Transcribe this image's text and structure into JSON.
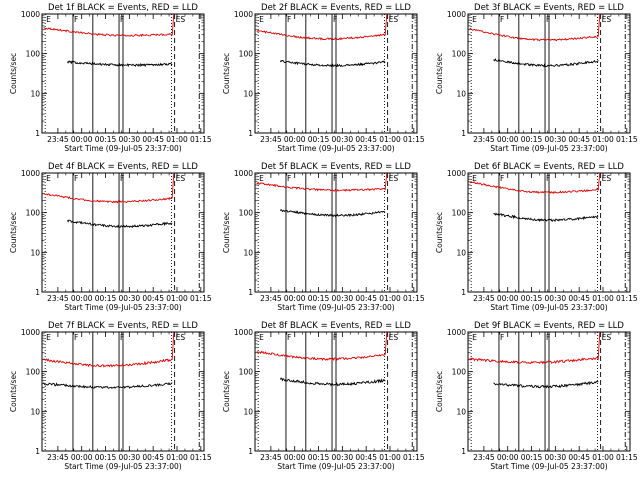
{
  "figure": {
    "background": "#ffffff",
    "events_color": "#000000",
    "lld_color": "#e00000"
  },
  "chart_data": [
    {
      "type": "line",
      "title": "Det 1f BLACK = Events, RED = LLD",
      "xlabel": "Start Time (09-Jul-05 23:37:00)",
      "ylabel": "Counts/sec",
      "yscale": "log",
      "ylim": [
        1,
        1000
      ],
      "xlim": [
        -2,
        100
      ],
      "x_unit": "minutes after 23:37:00",
      "x_tick_labels": [
        "23:45",
        "00:00",
        "00:15",
        "00:30",
        "00:45",
        "01:00",
        "01:15"
      ],
      "x_ticks": [
        8,
        23,
        38,
        53,
        68,
        83,
        98
      ],
      "y_tick_labels": [
        "1",
        "10",
        "100",
        "1000"
      ],
      "y_ticks": [
        1,
        10,
        100,
        1000
      ],
      "markers": [
        {
          "x": 0,
          "label": "E",
          "style": "dotted"
        },
        {
          "x": 17.5,
          "label": "F",
          "style": "solid"
        },
        {
          "x": 30,
          "label": "",
          "style": "solid"
        },
        {
          "x": 46.5,
          "label": "F",
          "style": "solid"
        },
        {
          "x": 49,
          "label": "",
          "style": "solid"
        },
        {
          "x": 79.5,
          "label": "",
          "style": "dotted"
        },
        {
          "x": 81.5,
          "label": "ES",
          "style": "dashed"
        },
        {
          "x": 97,
          "label": "",
          "style": "dashdot"
        }
      ],
      "series": [
        {
          "name": "LLD",
          "color": "#e00000",
          "x_start": -1,
          "x_end": 80,
          "start": 450,
          "end": 310,
          "dip": 300,
          "noise": 0.05,
          "spike_end": 1000
        },
        {
          "name": "Events",
          "color": "#000000",
          "x_start": 14,
          "x_end": 80,
          "start": 62,
          "end": 55,
          "dip": 52,
          "noise": 0.06
        }
      ]
    },
    {
      "type": "line",
      "title": "Det 2f BLACK = Events, RED = LLD",
      "xlabel": "Start Time (09-Jul-05 23:37:00)",
      "ylabel": "Counts/sec",
      "yscale": "log",
      "ylim": [
        1,
        1000
      ],
      "xlim": [
        -2,
        100
      ],
      "x_unit": "minutes after 23:37:00",
      "x_tick_labels": [
        "23:45",
        "00:00",
        "00:15",
        "00:30",
        "00:45",
        "01:00",
        "01:15"
      ],
      "x_ticks": [
        8,
        23,
        38,
        53,
        68,
        83,
        98
      ],
      "y_tick_labels": [
        "1",
        "10",
        "100",
        "1000"
      ],
      "y_ticks": [
        1,
        10,
        100,
        1000
      ],
      "markers": [
        {
          "x": 0,
          "label": "E",
          "style": "dotted"
        },
        {
          "x": 17.5,
          "label": "F",
          "style": "solid"
        },
        {
          "x": 30,
          "label": "",
          "style": "solid"
        },
        {
          "x": 46.5,
          "label": "F",
          "style": "solid"
        },
        {
          "x": 49,
          "label": "",
          "style": "solid"
        },
        {
          "x": 79.5,
          "label": "",
          "style": "dotted"
        },
        {
          "x": 81.5,
          "label": "ES",
          "style": "dashed"
        },
        {
          "x": 97,
          "label": "",
          "style": "dashdot"
        }
      ],
      "series": [
        {
          "name": "LLD",
          "color": "#e00000",
          "x_start": -1,
          "x_end": 80,
          "start": 380,
          "end": 300,
          "dip": 240,
          "noise": 0.05,
          "spike_end": 1000
        },
        {
          "name": "Events",
          "color": "#000000",
          "x_start": 14,
          "x_end": 80,
          "start": 65,
          "end": 62,
          "dip": 50,
          "noise": 0.06
        }
      ]
    },
    {
      "type": "line",
      "title": "Det 3f BLACK = Events, RED = LLD",
      "xlabel": "Start Time (09-Jul-05 23:37:00)",
      "ylabel": "Counts/sec",
      "yscale": "log",
      "ylim": [
        1,
        1000
      ],
      "xlim": [
        -2,
        100
      ],
      "x_unit": "minutes after 23:37:00",
      "x_tick_labels": [
        "23:45",
        "00:00",
        "00:15",
        "00:30",
        "00:45",
        "01:00",
        "01:15"
      ],
      "x_ticks": [
        8,
        23,
        38,
        53,
        68,
        83,
        98
      ],
      "y_tick_labels": [
        "1",
        "10",
        "100",
        "1000"
      ],
      "y_ticks": [
        1,
        10,
        100,
        1000
      ],
      "markers": [
        {
          "x": 0,
          "label": "E",
          "style": "dotted"
        },
        {
          "x": 17.5,
          "label": "F",
          "style": "solid"
        },
        {
          "x": 30,
          "label": "",
          "style": "solid"
        },
        {
          "x": 46.5,
          "label": "F",
          "style": "solid"
        },
        {
          "x": 49,
          "label": "",
          "style": "solid"
        },
        {
          "x": 79.5,
          "label": "",
          "style": "dotted"
        },
        {
          "x": 81.5,
          "label": "ES",
          "style": "dashed"
        },
        {
          "x": 97,
          "label": "",
          "style": "dashdot"
        }
      ],
      "series": [
        {
          "name": "LLD",
          "color": "#e00000",
          "x_start": -1,
          "x_end": 80,
          "start": 420,
          "end": 270,
          "dip": 230,
          "noise": 0.05,
          "spike_end": 1000
        },
        {
          "name": "Events",
          "color": "#000000",
          "x_start": 14,
          "x_end": 80,
          "start": 70,
          "end": 65,
          "dip": 50,
          "noise": 0.06
        }
      ]
    },
    {
      "type": "line",
      "title": "Det 4f BLACK = Events, RED = LLD",
      "xlabel": "Start Time (09-Jul-05 23:37:00)",
      "ylabel": "Counts/sec",
      "yscale": "log",
      "ylim": [
        1,
        1000
      ],
      "xlim": [
        -2,
        100
      ],
      "x_unit": "minutes after 23:37:00",
      "x_tick_labels": [
        "23:45",
        "00:00",
        "00:15",
        "00:30",
        "00:45",
        "01:00",
        "01:15"
      ],
      "x_ticks": [
        8,
        23,
        38,
        53,
        68,
        83,
        98
      ],
      "y_tick_labels": [
        "1",
        "10",
        "100",
        "1000"
      ],
      "y_ticks": [
        1,
        10,
        100,
        1000
      ],
      "markers": [
        {
          "x": 0,
          "label": "E",
          "style": "dotted"
        },
        {
          "x": 17.5,
          "label": "F",
          "style": "solid"
        },
        {
          "x": 30,
          "label": "",
          "style": "solid"
        },
        {
          "x": 46.5,
          "label": "F",
          "style": "solid"
        },
        {
          "x": 49,
          "label": "",
          "style": "solid"
        },
        {
          "x": 79.5,
          "label": "",
          "style": "dotted"
        },
        {
          "x": 81.5,
          "label": "ES",
          "style": "dashed"
        },
        {
          "x": 97,
          "label": "",
          "style": "dashdot"
        }
      ],
      "series": [
        {
          "name": "LLD",
          "color": "#e00000",
          "x_start": -1,
          "x_end": 80,
          "start": 300,
          "end": 230,
          "dip": 190,
          "noise": 0.05,
          "spike_end": 1000
        },
        {
          "name": "Events",
          "color": "#000000",
          "x_start": 14,
          "x_end": 80,
          "start": 62,
          "end": 55,
          "dip": 45,
          "noise": 0.06
        }
      ]
    },
    {
      "type": "line",
      "title": "Det 5f BLACK = Events, RED = LLD",
      "xlabel": "Start Time (09-Jul-05 23:37:00)",
      "ylabel": "Counts/sec",
      "yscale": "log",
      "ylim": [
        1,
        1000
      ],
      "xlim": [
        -2,
        100
      ],
      "x_unit": "minutes after 23:37:00",
      "x_tick_labels": [
        "23:45",
        "00:00",
        "00:15",
        "00:30",
        "00:45",
        "01:00",
        "01:15"
      ],
      "x_ticks": [
        8,
        23,
        38,
        53,
        68,
        83,
        98
      ],
      "y_tick_labels": [
        "1",
        "10",
        "100",
        "1000"
      ],
      "y_ticks": [
        1,
        10,
        100,
        1000
      ],
      "markers": [
        {
          "x": 0,
          "label": "E",
          "style": "dotted"
        },
        {
          "x": 17.5,
          "label": "F",
          "style": "solid"
        },
        {
          "x": 30,
          "label": "",
          "style": "solid"
        },
        {
          "x": 46.5,
          "label": "F",
          "style": "solid"
        },
        {
          "x": 49,
          "label": "",
          "style": "solid"
        },
        {
          "x": 79.5,
          "label": "",
          "style": "dotted"
        },
        {
          "x": 81.5,
          "label": "ES",
          "style": "dashed"
        },
        {
          "x": 97,
          "label": "",
          "style": "dashdot"
        }
      ],
      "series": [
        {
          "name": "LLD",
          "color": "#e00000",
          "x_start": -1,
          "x_end": 80,
          "start": 560,
          "end": 400,
          "dip": 380,
          "noise": 0.05,
          "spike_end": 1000
        },
        {
          "name": "Events",
          "color": "#000000",
          "x_start": 14,
          "x_end": 80,
          "start": 115,
          "end": 105,
          "dip": 85,
          "noise": 0.06
        }
      ]
    },
    {
      "type": "line",
      "title": "Det 6f BLACK = Events, RED = LLD",
      "xlabel": "Start Time (09-Jul-05 23:37:00)",
      "ylabel": "Counts/sec",
      "yscale": "log",
      "ylim": [
        1,
        1000
      ],
      "xlim": [
        -2,
        100
      ],
      "x_unit": "minutes after 23:37:00",
      "x_tick_labels": [
        "23:45",
        "00:00",
        "00:15",
        "00:30",
        "00:45",
        "01:00",
        "01:15"
      ],
      "x_ticks": [
        8,
        23,
        38,
        53,
        68,
        83,
        98
      ],
      "y_tick_labels": [
        "1",
        "10",
        "100",
        "1000"
      ],
      "y_ticks": [
        1,
        10,
        100,
        1000
      ],
      "markers": [
        {
          "x": 0,
          "label": "E",
          "style": "dotted"
        },
        {
          "x": 17.5,
          "label": "F",
          "style": "solid"
        },
        {
          "x": 30,
          "label": "",
          "style": "solid"
        },
        {
          "x": 46.5,
          "label": "F",
          "style": "solid"
        },
        {
          "x": 49,
          "label": "",
          "style": "solid"
        },
        {
          "x": 79.5,
          "label": "",
          "style": "dotted"
        },
        {
          "x": 81.5,
          "label": "ES",
          "style": "dashed"
        },
        {
          "x": 97,
          "label": "",
          "style": "dashdot"
        }
      ],
      "series": [
        {
          "name": "LLD",
          "color": "#e00000",
          "x_start": -1,
          "x_end": 80,
          "start": 600,
          "end": 380,
          "dip": 340,
          "noise": 0.05,
          "spike_end": 1000
        },
        {
          "name": "Events",
          "color": "#000000",
          "x_start": 14,
          "x_end": 80,
          "start": 95,
          "end": 80,
          "dip": 65,
          "noise": 0.06
        }
      ]
    },
    {
      "type": "line",
      "title": "Det 7f BLACK = Events, RED = LLD",
      "xlabel": "Start Time (09-Jul-05 23:37:00)",
      "ylabel": "Counts/sec",
      "yscale": "log",
      "ylim": [
        1,
        1000
      ],
      "xlim": [
        -2,
        100
      ],
      "x_unit": "minutes after 23:37:00",
      "x_tick_labels": [
        "23:45",
        "00:00",
        "00:15",
        "00:30",
        "00:45",
        "01:00",
        "01:15"
      ],
      "x_ticks": [
        8,
        23,
        38,
        53,
        68,
        83,
        98
      ],
      "y_tick_labels": [
        "1",
        "10",
        "100",
        "1000"
      ],
      "y_ticks": [
        1,
        10,
        100,
        1000
      ],
      "markers": [
        {
          "x": 0,
          "label": "E",
          "style": "dotted"
        },
        {
          "x": 17.5,
          "label": "F",
          "style": "solid"
        },
        {
          "x": 30,
          "label": "",
          "style": "solid"
        },
        {
          "x": 46.5,
          "label": "F",
          "style": "solid"
        },
        {
          "x": 49,
          "label": "",
          "style": "solid"
        },
        {
          "x": 79.5,
          "label": "",
          "style": "dotted"
        },
        {
          "x": 81.5,
          "label": "ES",
          "style": "dashed"
        },
        {
          "x": 97,
          "label": "",
          "style": "dashdot"
        }
      ],
      "series": [
        {
          "name": "LLD",
          "color": "#e00000",
          "x_start": -1,
          "x_end": 80,
          "start": 200,
          "end": 200,
          "dip": 140,
          "noise": 0.07,
          "spike_end": 1000
        },
        {
          "name": "Events",
          "color": "#000000",
          "x_start": -1,
          "x_end": 80,
          "start": 50,
          "end": 50,
          "dip": 40,
          "noise": 0.07
        }
      ]
    },
    {
      "type": "line",
      "title": "Det 8f BLACK = Events, RED = LLD",
      "xlabel": "Start Time (09-Jul-05 23:37:00)",
      "ylabel": "Counts/sec",
      "yscale": "log",
      "ylim": [
        1,
        1000
      ],
      "xlim": [
        -2,
        100
      ],
      "x_unit": "minutes after 23:37:00",
      "x_tick_labels": [
        "23:45",
        "00:00",
        "00:15",
        "00:30",
        "00:45",
        "01:00",
        "01:15"
      ],
      "x_ticks": [
        8,
        23,
        38,
        53,
        68,
        83,
        98
      ],
      "y_tick_labels": [
        "1",
        "10",
        "100",
        "1000"
      ],
      "y_ticks": [
        1,
        10,
        100,
        1000
      ],
      "markers": [
        {
          "x": 0,
          "label": "E",
          "style": "dotted"
        },
        {
          "x": 17.5,
          "label": "F",
          "style": "solid"
        },
        {
          "x": 30,
          "label": "",
          "style": "solid"
        },
        {
          "x": 46.5,
          "label": "F",
          "style": "solid"
        },
        {
          "x": 49,
          "label": "",
          "style": "solid"
        },
        {
          "x": 79.5,
          "label": "",
          "style": "dotted"
        },
        {
          "x": 81.5,
          "label": "ES",
          "style": "dashed"
        },
        {
          "x": 97,
          "label": "",
          "style": "dashdot"
        }
      ],
      "series": [
        {
          "name": "LLD",
          "color": "#e00000",
          "x_start": -1,
          "x_end": 80,
          "start": 320,
          "end": 260,
          "dip": 210,
          "noise": 0.06,
          "spike_end": 1000
        },
        {
          "name": "Events",
          "color": "#000000",
          "x_start": 14,
          "x_end": 80,
          "start": 65,
          "end": 60,
          "dip": 48,
          "noise": 0.07
        }
      ]
    },
    {
      "type": "line",
      "title": "Det 9f BLACK = Events, RED = LLD",
      "xlabel": "Start Time (09-Jul-05 23:37:00)",
      "ylabel": "Counts/sec",
      "yscale": "log",
      "ylim": [
        1,
        1000
      ],
      "xlim": [
        -2,
        100
      ],
      "x_unit": "minutes after 23:37:00",
      "x_tick_labels": [
        "23:45",
        "00:00",
        "00:15",
        "00:30",
        "00:45",
        "01:00",
        "01:15"
      ],
      "x_ticks": [
        8,
        23,
        38,
        53,
        68,
        83,
        98
      ],
      "y_tick_labels": [
        "1",
        "10",
        "100",
        "1000"
      ],
      "y_ticks": [
        1,
        10,
        100,
        1000
      ],
      "markers": [
        {
          "x": 0,
          "label": "E",
          "style": "dotted"
        },
        {
          "x": 17.5,
          "label": "F",
          "style": "solid"
        },
        {
          "x": 30,
          "label": "",
          "style": "solid"
        },
        {
          "x": 46.5,
          "label": "F",
          "style": "solid"
        },
        {
          "x": 49,
          "label": "",
          "style": "solid"
        },
        {
          "x": 79.5,
          "label": "",
          "style": "dotted"
        },
        {
          "x": 81.5,
          "label": "ES",
          "style": "dashed"
        },
        {
          "x": 97,
          "label": "",
          "style": "dashdot"
        }
      ],
      "series": [
        {
          "name": "LLD",
          "color": "#e00000",
          "x_start": -1,
          "x_end": 80,
          "start": 210,
          "end": 220,
          "dip": 170,
          "noise": 0.07,
          "spike_end": 1000
        },
        {
          "name": "Events",
          "color": "#000000",
          "x_start": 14,
          "x_end": 80,
          "start": 50,
          "end": 55,
          "dip": 42,
          "noise": 0.07
        }
      ]
    }
  ]
}
